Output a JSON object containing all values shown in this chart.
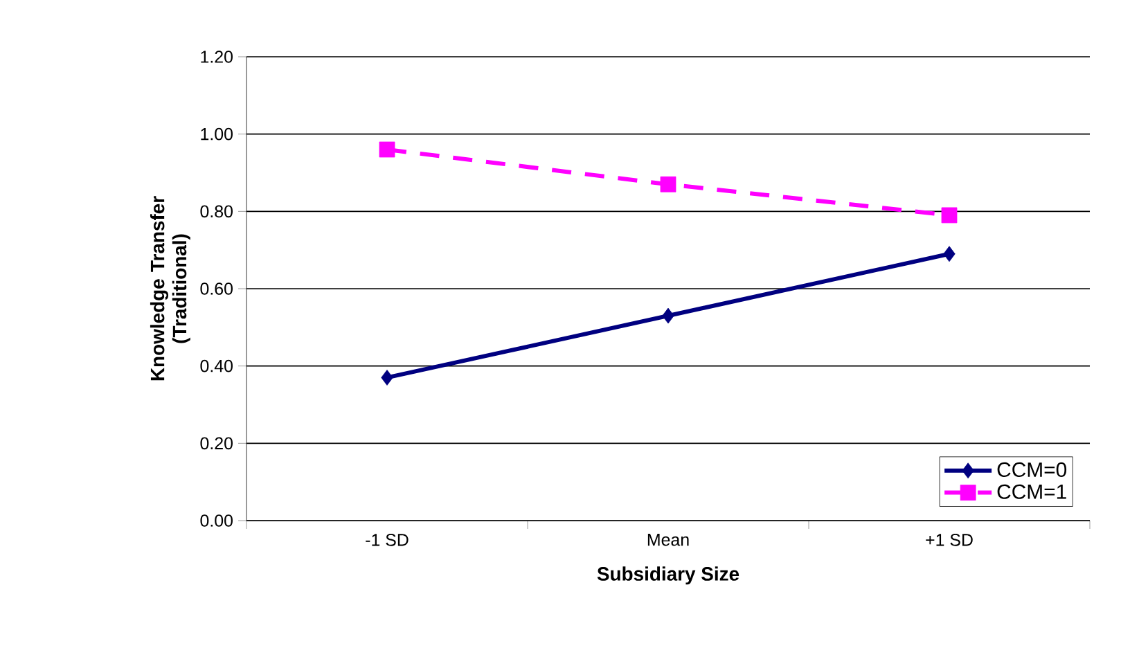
{
  "chart_data": {
    "type": "line",
    "xlabel": "Subsidiary Size",
    "ylabel": "Knowledge Transfer (Traditional)",
    "categories": [
      "-1 SD",
      "Mean",
      "+1 SD"
    ],
    "series": [
      {
        "name": "CCM=0",
        "color": "#000080",
        "values": [
          0.37,
          0.53,
          0.69
        ],
        "marker": "diamond",
        "line_style": "solid"
      },
      {
        "name": "CCM=1",
        "color": "#ff00ff",
        "values": [
          0.96,
          0.87,
          0.79
        ],
        "marker": "square",
        "line_style": "dashed"
      }
    ],
    "ylim": [
      0,
      1.2
    ],
    "yticks": [
      {
        "value": 0,
        "label": "0.00"
      },
      {
        "value": 0.2,
        "label": "0.20"
      },
      {
        "value": 0.4,
        "label": "0.40"
      },
      {
        "value": 0.6,
        "label": "0.60"
      },
      {
        "value": 0.8,
        "label": "0.80"
      },
      {
        "value": 1.0,
        "label": "1.00"
      },
      {
        "value": 1.2,
        "label": "1.20"
      }
    ],
    "grid": "y",
    "legend": "bottom right"
  }
}
